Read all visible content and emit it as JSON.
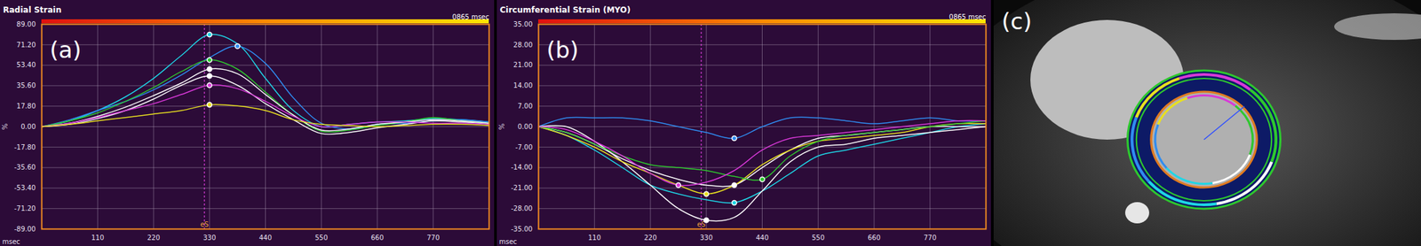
{
  "chart_data": [
    {
      "type": "line",
      "title": "Radial Strain",
      "subtitle": "0865 msec",
      "panel_label": "(a)",
      "x_label": "msec",
      "y_label": "%",
      "x": [
        0,
        55,
        110,
        165,
        220,
        275,
        330,
        385,
        440,
        495,
        550,
        605,
        660,
        715,
        770,
        825,
        880
      ],
      "xlim": [
        0,
        880
      ],
      "xticks": [
        110,
        220,
        330,
        440,
        550,
        660,
        770
      ],
      "ylim": [
        -89,
        89
      ],
      "yticks": [
        {
          "value": 89,
          "label": "89.00"
        },
        {
          "value": 71.2,
          "label": "71.20"
        },
        {
          "value": 53.4,
          "label": "53.40"
        },
        {
          "value": 35.6,
          "label": "35.60"
        },
        {
          "value": 17.8,
          "label": "17.80"
        },
        {
          "value": 0,
          "label": "0.00"
        },
        {
          "value": -17.8,
          "label": "-17.80"
        },
        {
          "value": -35.6,
          "label": "-35.60"
        },
        {
          "value": -53.4,
          "label": "-53.40"
        },
        {
          "value": -71.2,
          "label": "-71.20"
        },
        {
          "value": -89,
          "label": "-89.00"
        }
      ],
      "grid": true,
      "marker": "circle",
      "annotations": [
        {
          "text": "eS",
          "x": 320
        }
      ],
      "series": [
        {
          "color": "#1ed6e6",
          "values": [
            0,
            5,
            14,
            26,
            42,
            62,
            80,
            72,
            42,
            14,
            0,
            2,
            4,
            5,
            7,
            6,
            4
          ],
          "peak": {
            "x": 330,
            "y": 80
          }
        },
        {
          "color": "#2f8cf0",
          "values": [
            0,
            6,
            14,
            22,
            32,
            45,
            60,
            70,
            55,
            25,
            3,
            -2,
            2,
            3,
            5,
            6,
            4
          ],
          "peak": {
            "x": 385,
            "y": 70
          }
        },
        {
          "color": "#2ec82e",
          "values": [
            0,
            5,
            12,
            22,
            34,
            48,
            58,
            50,
            30,
            10,
            -4,
            -3,
            1,
            4,
            8,
            5,
            3
          ],
          "peak": {
            "x": 330,
            "y": 58
          }
        },
        {
          "color": "#ffffff",
          "values": [
            0,
            3,
            9,
            17,
            27,
            38,
            50,
            46,
            28,
            10,
            -3,
            -2,
            2,
            4,
            6,
            5,
            3
          ],
          "peak": {
            "x": 330,
            "y": 50
          }
        },
        {
          "color": "#ffffff",
          "values": [
            0,
            2,
            7,
            14,
            24,
            36,
            44,
            36,
            20,
            6,
            -6,
            -5,
            -1,
            2,
            5,
            4,
            2
          ],
          "peak": {
            "x": 330,
            "y": 44
          }
        },
        {
          "color": "#d838d8",
          "values": [
            0,
            3,
            8,
            14,
            20,
            28,
            36,
            33,
            22,
            9,
            0,
            2,
            4,
            4,
            3,
            3,
            2
          ],
          "peak": {
            "x": 330,
            "y": 36
          }
        },
        {
          "color": "#e8e020",
          "values": [
            0,
            2,
            5,
            8,
            11,
            14,
            19,
            18,
            14,
            6,
            2,
            1,
            0,
            1,
            2,
            2,
            1
          ],
          "peak": {
            "x": 330,
            "y": 19
          }
        }
      ]
    },
    {
      "type": "line",
      "title": "Circumferential Strain (MYO)",
      "subtitle": "0865 msec",
      "panel_label": "(b)",
      "x_label": "msec",
      "y_label": "%",
      "x": [
        0,
        55,
        110,
        165,
        220,
        275,
        330,
        385,
        440,
        495,
        550,
        605,
        660,
        715,
        770,
        825,
        880
      ],
      "xlim": [
        0,
        880
      ],
      "xticks": [
        110,
        220,
        330,
        440,
        550,
        660,
        770
      ],
      "ylim": [
        -35,
        35
      ],
      "yticks": [
        {
          "value": 35,
          "label": "35.00"
        },
        {
          "value": 28,
          "label": "28.00"
        },
        {
          "value": 21,
          "label": "21.00"
        },
        {
          "value": 14,
          "label": "14.00"
        },
        {
          "value": 7,
          "label": "7.00"
        },
        {
          "value": 0,
          "label": "0.00"
        },
        {
          "value": -7,
          "label": "-7.00"
        },
        {
          "value": -14,
          "label": "-14.00"
        },
        {
          "value": -21,
          "label": "-21.00"
        },
        {
          "value": -28,
          "label": "-28.00"
        },
        {
          "value": -35,
          "label": "-35.00"
        }
      ],
      "grid": true,
      "marker": "circle",
      "annotations": [
        {
          "text": "eS",
          "x": 320
        }
      ],
      "series": [
        {
          "color": "#2f8cf0",
          "values": [
            0,
            3,
            3,
            3,
            2,
            0,
            -2,
            -4,
            0,
            3,
            3,
            2,
            1,
            2,
            3,
            2,
            2
          ],
          "peak": {
            "x": 385,
            "y": -4
          }
        },
        {
          "color": "#1ed6e6",
          "values": [
            0,
            -3,
            -8,
            -14,
            -20,
            -23,
            -25,
            -26,
            -22,
            -16,
            -10,
            -8,
            -6,
            -4,
            -2,
            0,
            1
          ],
          "peak": {
            "x": 385,
            "y": -26
          }
        },
        {
          "color": "#ffffff",
          "values": [
            0,
            0,
            -5,
            -12,
            -20,
            -28,
            -32,
            -31,
            -22,
            -12,
            -7,
            -6,
            -4,
            -3,
            -2,
            -1,
            0
          ],
          "peak": {
            "x": 330,
            "y": -32
          }
        },
        {
          "color": "#ffffff",
          "values": [
            0,
            -2,
            -6,
            -11,
            -15,
            -18,
            -20,
            -20,
            -14,
            -8,
            -4,
            -3,
            -2,
            -1,
            0,
            0,
            0
          ],
          "peak": {
            "x": 385,
            "y": -20
          }
        },
        {
          "color": "#e8e020",
          "values": [
            0,
            -3,
            -7,
            -12,
            -16,
            -20,
            -23,
            -20,
            -13,
            -8,
            -5,
            -4,
            -3,
            -2,
            0,
            1,
            1
          ],
          "peak": {
            "x": 330,
            "y": -23
          }
        },
        {
          "color": "#2ec82e",
          "values": [
            0,
            -2,
            -6,
            -10,
            -13,
            -14,
            -15,
            -17,
            -18,
            -10,
            -5,
            -3,
            -2,
            -1,
            0,
            1,
            2
          ],
          "peak": {
            "x": 440,
            "y": -18
          }
        },
        {
          "color": "#d838d8",
          "values": [
            0,
            -1,
            -5,
            -10,
            -16,
            -20,
            -19,
            -15,
            -8,
            -4,
            -3,
            -2,
            -1,
            0,
            1,
            2,
            2
          ],
          "peak": {
            "x": 275,
            "y": -20
          }
        }
      ]
    }
  ],
  "image": {
    "panel_label": "(c)"
  }
}
